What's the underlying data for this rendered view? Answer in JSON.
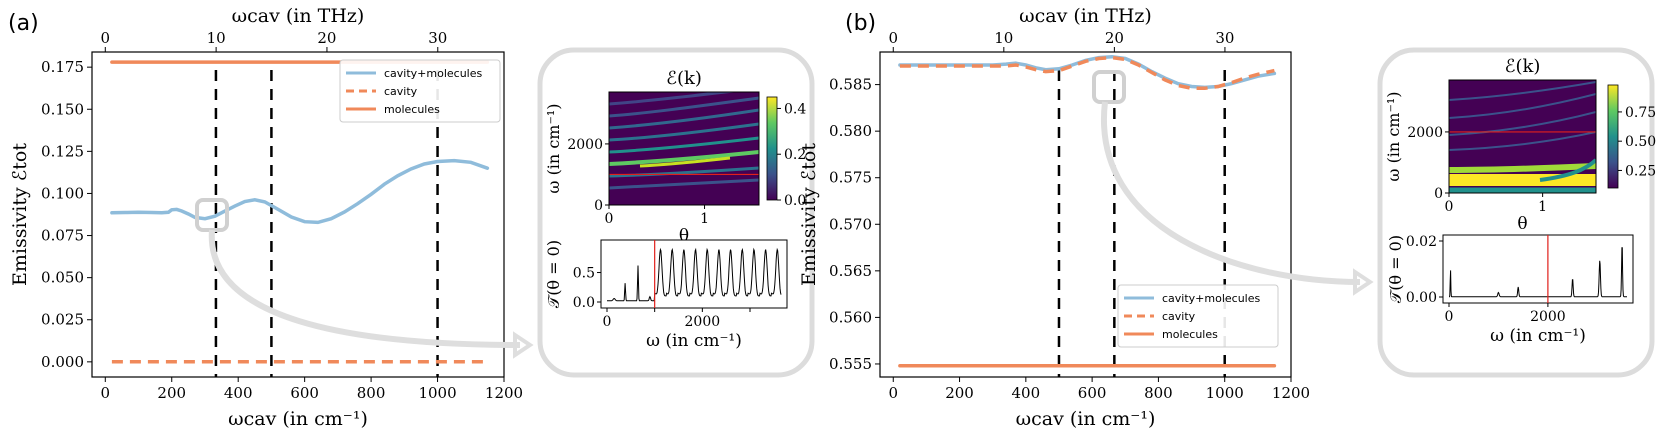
{
  "chart_data": [
    {
      "type": "line",
      "panel_label": "(a)",
      "xlabel": "ωcav (in cm⁻¹)",
      "ylabel": "Emissivity ℰtot",
      "top_xlabel": "ωcav (in THz)",
      "xlim": [
        -40,
        1200
      ],
      "ylim": [
        -0.009,
        0.184
      ],
      "x_ticks": [
        0,
        200,
        400,
        600,
        800,
        1000,
        1200
      ],
      "x_tick_labels": [
        "0",
        "200",
        "400",
        "600",
        "800",
        "1000",
        "1200"
      ],
      "y_ticks": [
        0.0,
        0.025,
        0.05,
        0.075,
        0.1,
        0.125,
        0.15,
        0.175
      ],
      "y_tick_labels": [
        "0.000",
        "0.025",
        "0.050",
        "0.075",
        "0.100",
        "0.125",
        "0.150",
        "0.175"
      ],
      "top_ticks_thz": [
        0,
        10,
        20,
        30
      ],
      "top_tick_labels": [
        "0",
        "10",
        "20",
        "30"
      ],
      "vlines": [
        333,
        500,
        1000
      ],
      "legend_position": "top-right",
      "series": [
        {
          "name": "cavity+molecules",
          "style": "solid",
          "color": "#8fbcdb",
          "x": [
            20,
            60,
            100,
            140,
            170,
            190,
            200,
            215,
            230,
            250,
            270,
            300,
            330,
            360,
            390,
            420,
            450,
            480,
            520,
            560,
            600,
            640,
            680,
            720,
            760,
            800,
            840,
            880,
            920,
            960,
            1000,
            1050,
            1100,
            1150
          ],
          "y": [
            0.0885,
            0.0887,
            0.0888,
            0.0887,
            0.0885,
            0.0888,
            0.0903,
            0.0905,
            0.0896,
            0.0878,
            0.0858,
            0.085,
            0.0865,
            0.0895,
            0.0925,
            0.0952,
            0.0962,
            0.095,
            0.0905,
            0.086,
            0.0832,
            0.0828,
            0.085,
            0.089,
            0.094,
            0.0995,
            0.1055,
            0.1105,
            0.1145,
            0.1175,
            0.119,
            0.1195,
            0.1185,
            0.115
          ]
        },
        {
          "name": "cavity",
          "style": "dashed",
          "color": "#f0895a",
          "x": [
            20,
            1150
          ],
          "y": [
            0.0,
            0.0
          ]
        },
        {
          "name": "molecules",
          "style": "solid",
          "color": "#f0895a",
          "x": [
            20,
            1150
          ],
          "y": [
            0.178,
            0.178
          ]
        }
      ],
      "inset_heatmap": {
        "title": "ℰ(k)",
        "xlabel": "θ",
        "ylabel": "ω (in cm⁻¹)",
        "x_ticks": [
          0,
          1
        ],
        "y_ticks": [
          0,
          2000
        ],
        "colorbar_ticks": [
          0.0,
          0.2,
          0.4
        ],
        "colorbar_labels": [
          "0.0",
          "0.2",
          "0.4"
        ],
        "red_line_omega": 1000
      },
      "inset_line": {
        "ylabel": "𝒯(θ = 0)",
        "xlabel": "ω (in cm⁻¹)",
        "x_ticks": [
          0,
          1000,
          2000,
          3000
        ],
        "x_tick_labels": [
          "0",
          "",
          "2000",
          ""
        ],
        "y_ticks": [
          0.0,
          0.5
        ],
        "y_tick_labels": [
          "0.0",
          "0.5"
        ],
        "red_line_omega": 1000
      }
    },
    {
      "type": "line",
      "panel_label": "(b)",
      "xlabel": "ωcav (in cm⁻¹)",
      "ylabel": "Emissivity ℰtot",
      "top_xlabel": "ωcav (in THz)",
      "xlim": [
        -40,
        1200
      ],
      "ylim": [
        0.5536,
        0.5885
      ],
      "x_ticks": [
        0,
        200,
        400,
        600,
        800,
        1000,
        1200
      ],
      "x_tick_labels": [
        "0",
        "200",
        "400",
        "600",
        "800",
        "1000",
        "1200"
      ],
      "y_ticks": [
        0.555,
        0.56,
        0.565,
        0.57,
        0.575,
        0.58,
        0.585
      ],
      "y_tick_labels": [
        "0.555",
        "0.560",
        "0.565",
        "0.570",
        "0.575",
        "0.580",
        "0.585"
      ],
      "top_ticks_thz": [
        0,
        10,
        20,
        30
      ],
      "top_tick_labels": [
        "0",
        "10",
        "20",
        "30"
      ],
      "vlines": [
        500,
        667,
        1000
      ],
      "legend_position": "bottom-right",
      "series": [
        {
          "name": "cavity+molecules",
          "style": "solid",
          "color": "#8fbcdb",
          "x": [
            20,
            100,
            200,
            300,
            340,
            370,
            400,
            430,
            460,
            500,
            540,
            580,
            620,
            660,
            700,
            740,
            780,
            820,
            860,
            900,
            940,
            980,
            1020,
            1060,
            1100,
            1150
          ],
          "y": [
            0.5871,
            0.5871,
            0.5871,
            0.5871,
            0.5872,
            0.5873,
            0.5871,
            0.5868,
            0.5866,
            0.5867,
            0.5871,
            0.5876,
            0.5879,
            0.588,
            0.5878,
            0.5872,
            0.5864,
            0.5857,
            0.5851,
            0.5848,
            0.5847,
            0.5848,
            0.5851,
            0.5855,
            0.5859,
            0.5862
          ]
        },
        {
          "name": "cavity",
          "style": "dashed",
          "color": "#f0895a",
          "x": [
            20,
            100,
            200,
            300,
            340,
            370,
            400,
            430,
            460,
            500,
            540,
            580,
            620,
            660,
            700,
            740,
            780,
            820,
            860,
            900,
            940,
            980,
            1020,
            1060,
            1100,
            1150
          ],
          "y": [
            0.587,
            0.587,
            0.587,
            0.587,
            0.587,
            0.5871,
            0.5869,
            0.5866,
            0.5864,
            0.5865,
            0.587,
            0.5875,
            0.5878,
            0.5879,
            0.5877,
            0.5871,
            0.5863,
            0.5855,
            0.5849,
            0.5846,
            0.5846,
            0.5848,
            0.5852,
            0.5857,
            0.5861,
            0.5865
          ]
        },
        {
          "name": "molecules",
          "style": "solid",
          "color": "#f0895a",
          "x": [
            20,
            1150
          ],
          "y": [
            0.5548,
            0.5548
          ]
        }
      ],
      "inset_heatmap": {
        "title": "ℰ(k)",
        "xlabel": "θ",
        "ylabel": "ω (in cm⁻¹)",
        "x_ticks": [
          0,
          1
        ],
        "y_ticks": [
          0,
          2000
        ],
        "colorbar_ticks": [
          0.25,
          0.5,
          0.75
        ],
        "colorbar_labels": [
          "0.25",
          "0.50",
          "0.75"
        ],
        "red_line_omega": 2000
      },
      "inset_line": {
        "ylabel": "𝒯(θ = 0)",
        "xlabel": "ω (in cm⁻¹)",
        "x_ticks": [
          0,
          2000
        ],
        "x_tick_labels": [
          "0",
          "2000"
        ],
        "y_ticks": [
          0.0,
          0.02
        ],
        "y_tick_labels": [
          "0.00",
          "0.02"
        ],
        "red_line_omega": 2000
      }
    }
  ]
}
